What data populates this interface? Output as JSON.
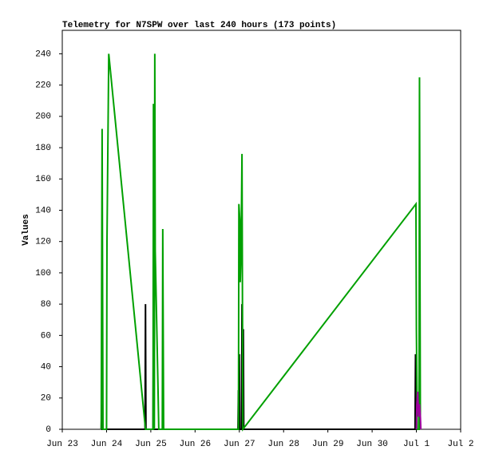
{
  "chart_data": {
    "type": "line",
    "title": "Telemetry for N7SPW over last 240 hours (173 points)",
    "y_label": "Values",
    "xlim": [
      0,
      9
    ],
    "xticks": [
      {
        "value": 0,
        "label": "Jun 23"
      },
      {
        "value": 1,
        "label": "Jun 24"
      },
      {
        "value": 2,
        "label": "Jun 25"
      },
      {
        "value": 3,
        "label": "Jun 26"
      },
      {
        "value": 4,
        "label": "Jun 27"
      },
      {
        "value": 5,
        "label": "Jun 28"
      },
      {
        "value": 6,
        "label": "Jun 29"
      },
      {
        "value": 7,
        "label": "Jun 30"
      },
      {
        "value": 8,
        "label": "Jul 1"
      },
      {
        "value": 9,
        "label": "Jul 2"
      }
    ],
    "ylim": [
      0,
      255
    ],
    "yticks": [
      0,
      20,
      40,
      60,
      80,
      100,
      120,
      140,
      160,
      180,
      200,
      220,
      240
    ],
    "series": [
      {
        "color": "#000000",
        "x": [
          0.88,
          0.89,
          0.9,
          1.87,
          1.88,
          1.89,
          2.05,
          2.06,
          2.07,
          3.97,
          3.98,
          3.99,
          4.0,
          4.01,
          4.05,
          4.06,
          4.07,
          4.09,
          4.1,
          7.97,
          7.98,
          7.99,
          8.0,
          8.01,
          8.08
        ],
        "values": [
          0,
          16,
          0,
          0,
          80,
          0,
          0,
          64,
          0,
          0,
          25,
          0,
          48,
          0,
          0,
          80,
          0,
          64,
          0,
          0,
          48,
          0,
          40,
          0,
          0
        ]
      },
      {
        "color": "#00a000",
        "x": [
          0.88,
          0.9,
          0.92,
          1.0,
          1.01,
          1.05,
          1.88,
          2.05,
          2.06,
          2.08,
          2.09,
          2.1,
          2.12,
          2.14,
          2.16,
          2.18,
          2.26,
          2.27,
          2.29,
          3.98,
          3.99,
          4.01,
          4.02,
          4.04,
          4.06,
          4.08,
          7.99,
          8.0,
          8.02,
          8.06,
          8.07,
          8.09
        ],
        "values": [
          0,
          192,
          0,
          0,
          120,
          240,
          0,
          0,
          208,
          0,
          240,
          114,
          86,
          58,
          30,
          0,
          0,
          128,
          0,
          0,
          144,
          134,
          94,
          114,
          176,
          0,
          144,
          64,
          0,
          0,
          225,
          0
        ]
      },
      {
        "color": "#a000a0",
        "x": [
          8.0,
          8.01,
          8.03,
          8.05,
          8.07,
          8.09,
          8.1
        ],
        "values": [
          0,
          16,
          24,
          8,
          16,
          8,
          0
        ]
      }
    ]
  }
}
